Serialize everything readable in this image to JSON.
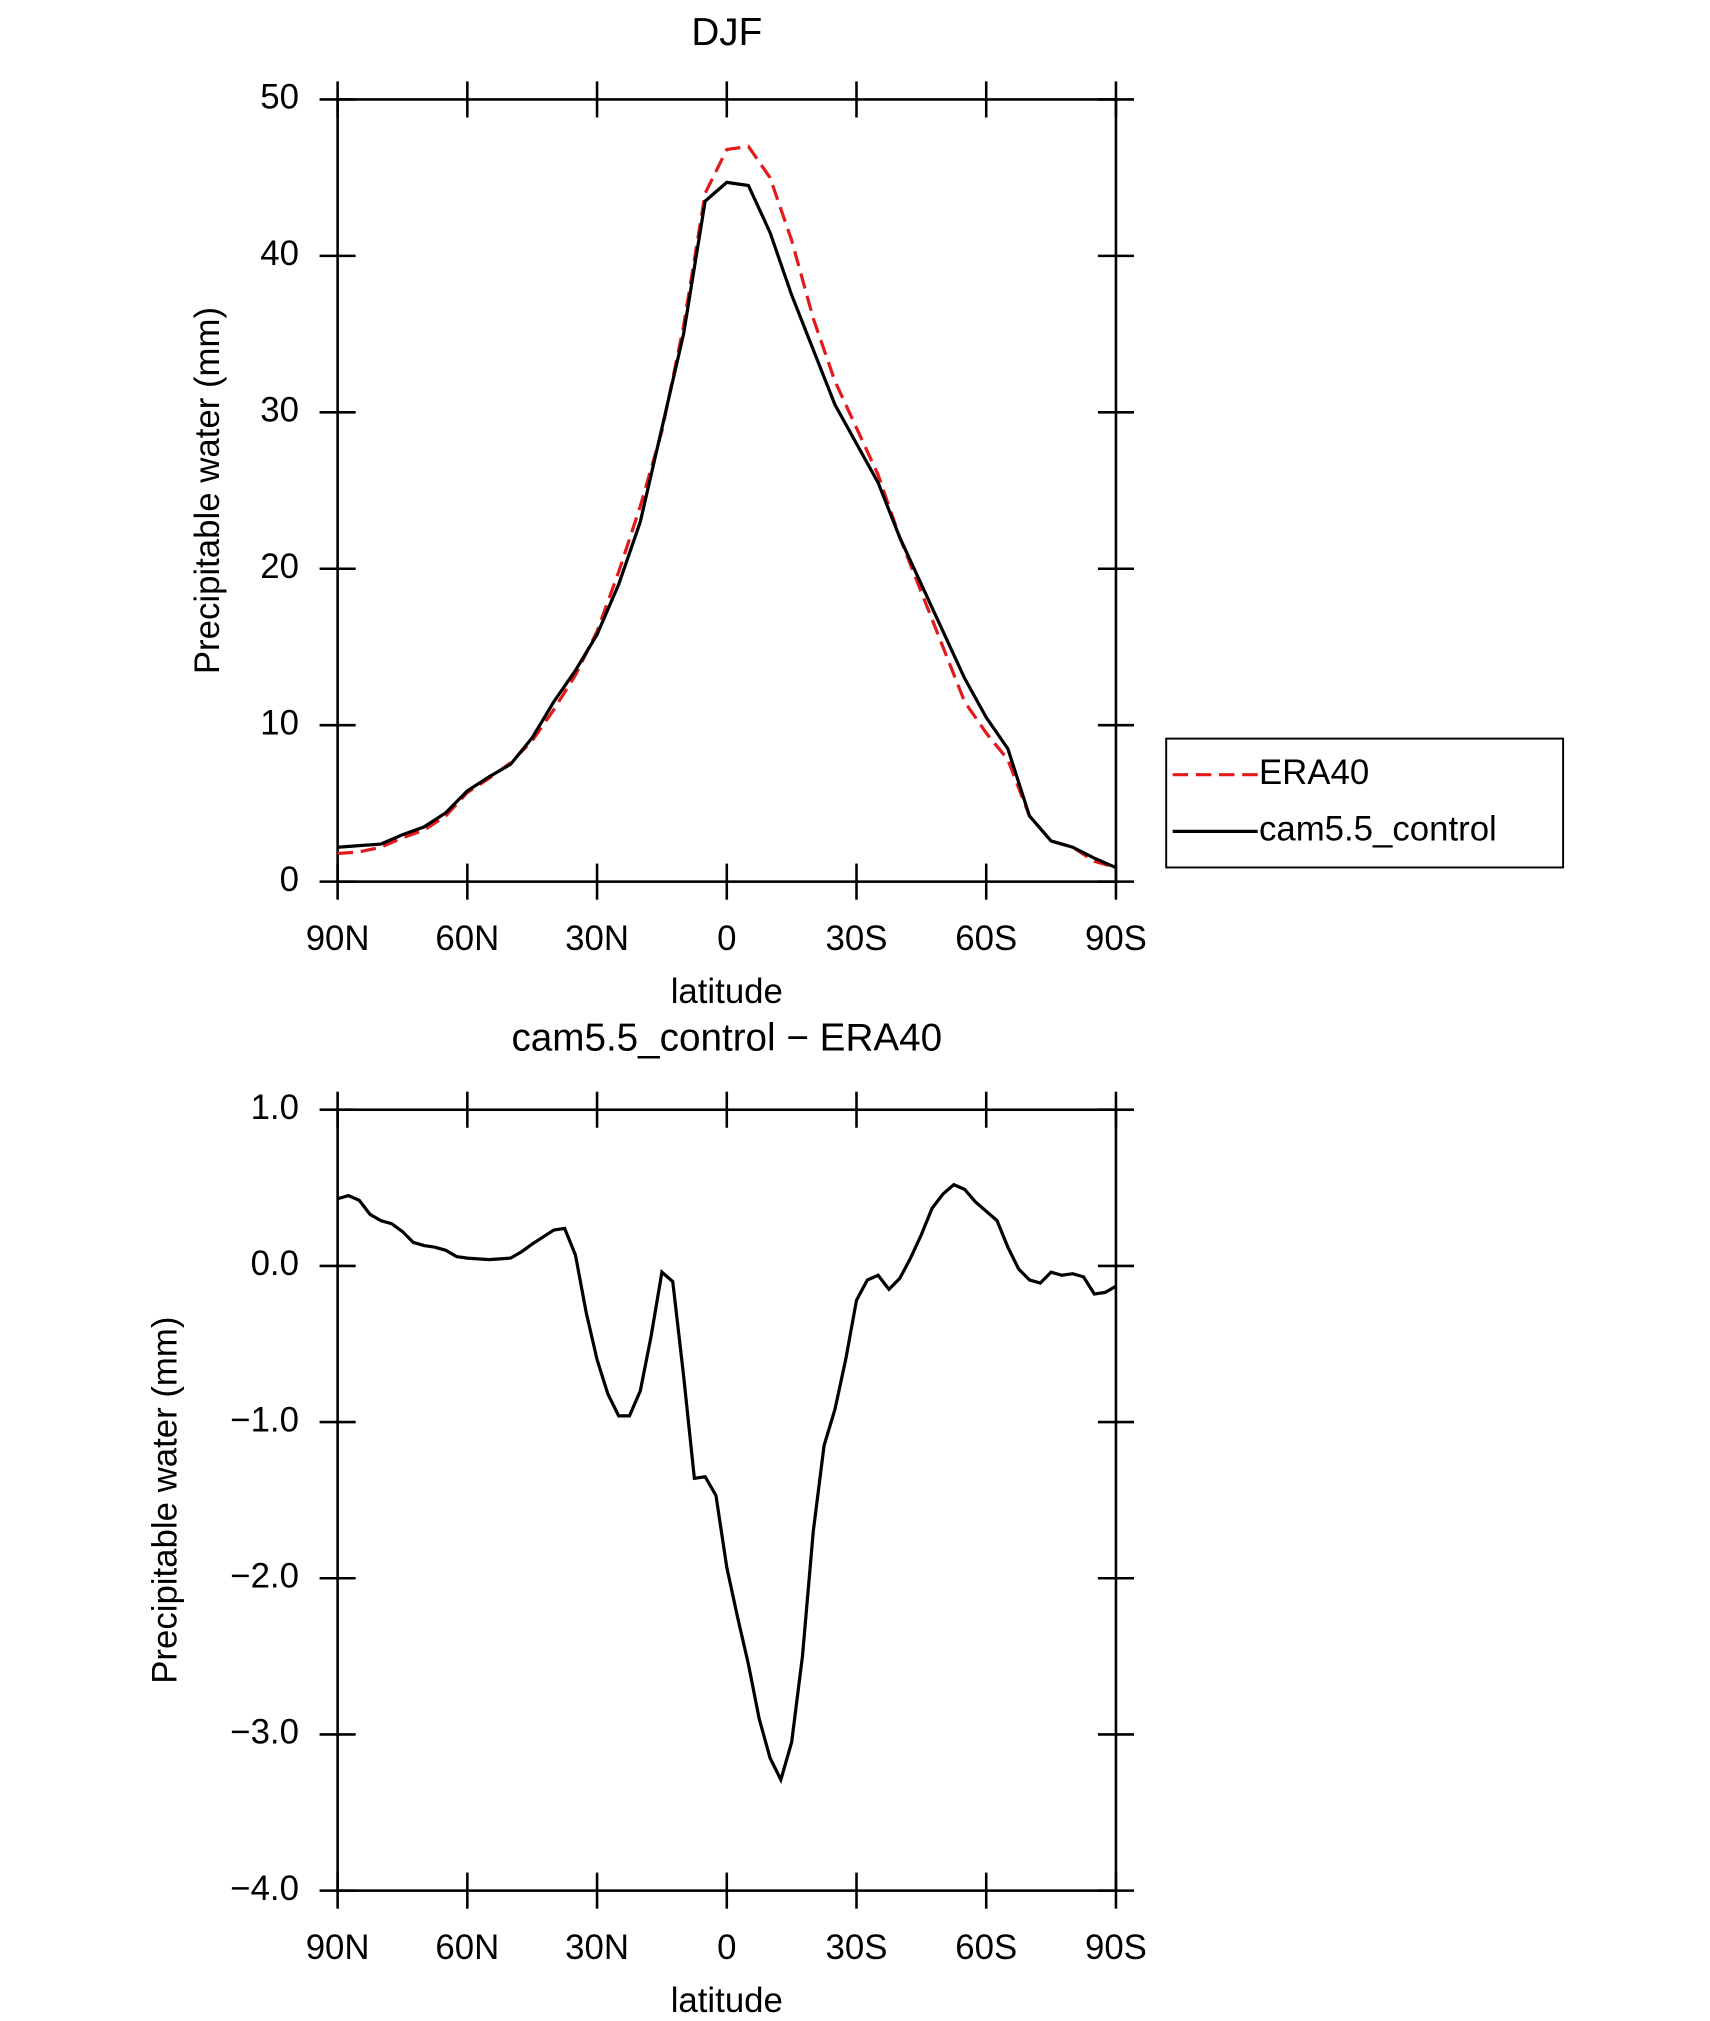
{
  "chart_data": [
    {
      "type": "line",
      "title": "DJF",
      "xlabel": "latitude",
      "ylabel": "Precipitable water (mm)",
      "x": [
        90,
        85,
        80,
        75,
        70,
        65,
        60,
        55,
        50,
        45,
        40,
        35,
        30,
        25,
        20,
        15,
        10,
        5,
        0,
        -5,
        -10,
        -15,
        -20,
        -25,
        -30,
        -35,
        -40,
        -45,
        -50,
        -55,
        -60,
        -65,
        -70,
        -75,
        -80,
        -85,
        -90
      ],
      "series": [
        {
          "name": "ERA40",
          "color": "#e31a1c",
          "line_style": "dashed",
          "values": [
            1.8,
            1.9,
            2.2,
            2.8,
            3.3,
            4.2,
            5.7,
            6.6,
            7.6,
            9.0,
            11.0,
            13.2,
            16.0,
            19.8,
            24.0,
            28.8,
            35.5,
            44.0,
            46.8,
            47.0,
            45.0,
            41.0,
            36.0,
            32.0,
            29.0,
            26.0,
            22.0,
            18.5,
            15.0,
            11.5,
            9.5,
            7.8,
            4.2,
            2.6,
            2.2,
            1.3,
            0.9
          ]
        },
        {
          "name": "cam5.5_control",
          "color": "#000000",
          "line_style": "solid",
          "values": [
            2.2,
            2.3,
            2.4,
            3.0,
            3.5,
            4.4,
            5.8,
            6.7,
            7.5,
            9.2,
            11.5,
            13.5,
            15.8,
            19.0,
            23.0,
            29.0,
            35.0,
            43.5,
            44.7,
            44.5,
            41.5,
            37.5,
            34.0,
            30.5,
            28.0,
            25.5,
            22.0,
            19.0,
            16.0,
            13.0,
            10.5,
            8.5,
            4.2,
            2.6,
            2.2,
            1.5,
            0.9
          ]
        }
      ],
      "xlim": [
        90,
        -90
      ],
      "xticks": [
        {
          "value": 90,
          "label": "90N"
        },
        {
          "value": 60,
          "label": "60N"
        },
        {
          "value": 30,
          "label": "30N"
        },
        0,
        {
          "value": -30,
          "label": "30S"
        },
        {
          "value": -60,
          "label": "60S"
        },
        {
          "value": -90,
          "label": "90S"
        }
      ],
      "ylim": [
        0,
        50
      ],
      "yticks": [
        0,
        10,
        20,
        30,
        40,
        50
      ],
      "legend": "right"
    },
    {
      "type": "line",
      "title": "cam5.5_control − ERA40",
      "xlabel": "latitude",
      "ylabel": "Precipitable water (mm)",
      "x": [
        90,
        87.5,
        85,
        82.5,
        80,
        77.5,
        75,
        72.5,
        70,
        67.5,
        65,
        62.5,
        60,
        55,
        50,
        47.5,
        45,
        40,
        37.5,
        35,
        32.5,
        30,
        27.5,
        25,
        22.5,
        20,
        17.5,
        15,
        12.5,
        10,
        7.5,
        5,
        2.5,
        0,
        -2.5,
        -5,
        -7.5,
        -10,
        -12.5,
        -15,
        -17.5,
        -20,
        -22.5,
        -25,
        -27.5,
        -30,
        -32.5,
        -35,
        -37.5,
        -40,
        -42.5,
        -45,
        -47.5,
        -50,
        -52.5,
        -55,
        -57.5,
        -60,
        -62.5,
        -65,
        -67.5,
        -70,
        -72.5,
        -75,
        -77.5,
        -80,
        -82.5,
        -85,
        -87.5,
        -90
      ],
      "values": [
        0.43,
        0.45,
        0.42,
        0.33,
        0.29,
        0.27,
        0.22,
        0.15,
        0.13,
        0.12,
        0.1,
        0.06,
        0.05,
        0.04,
        0.05,
        0.09,
        0.14,
        0.23,
        0.24,
        0.07,
        -0.3,
        -0.6,
        -0.82,
        -0.96,
        -0.96,
        -0.8,
        -0.45,
        -0.04,
        -0.1,
        -0.7,
        -1.36,
        -1.35,
        -1.47,
        -1.93,
        -2.25,
        -2.55,
        -2.9,
        -3.15,
        -3.29,
        -3.05,
        -2.5,
        -1.7,
        -1.15,
        -0.92,
        -0.6,
        -0.22,
        -0.09,
        -0.06,
        -0.15,
        -0.08,
        0.05,
        0.2,
        0.37,
        0.46,
        0.52,
        0.49,
        0.41,
        0.35,
        0.29,
        0.12,
        -0.02,
        -0.09,
        -0.11,
        -0.04,
        -0.06,
        -0.05,
        -0.07,
        -0.18,
        -0.17,
        -0.13
      ],
      "color": "#000000",
      "xlim": [
        90,
        -90
      ],
      "xticks": [
        {
          "value": 90,
          "label": "90N"
        },
        {
          "value": 60,
          "label": "60N"
        },
        {
          "value": 30,
          "label": "30N"
        },
        0,
        {
          "value": -30,
          "label": "30S"
        },
        {
          "value": -60,
          "label": "60S"
        },
        {
          "value": -90,
          "label": "90S"
        }
      ],
      "ylim": [
        -4,
        1
      ],
      "yticks": [
        {
          "value": -4,
          "label": "−4.0"
        },
        {
          "value": -3,
          "label": "−3.0"
        },
        {
          "value": -2,
          "label": "−2.0"
        },
        {
          "value": -1,
          "label": "−1.0"
        },
        {
          "value": 0,
          "label": "0.0"
        },
        {
          "value": 1,
          "label": "1.0"
        }
      ]
    }
  ]
}
